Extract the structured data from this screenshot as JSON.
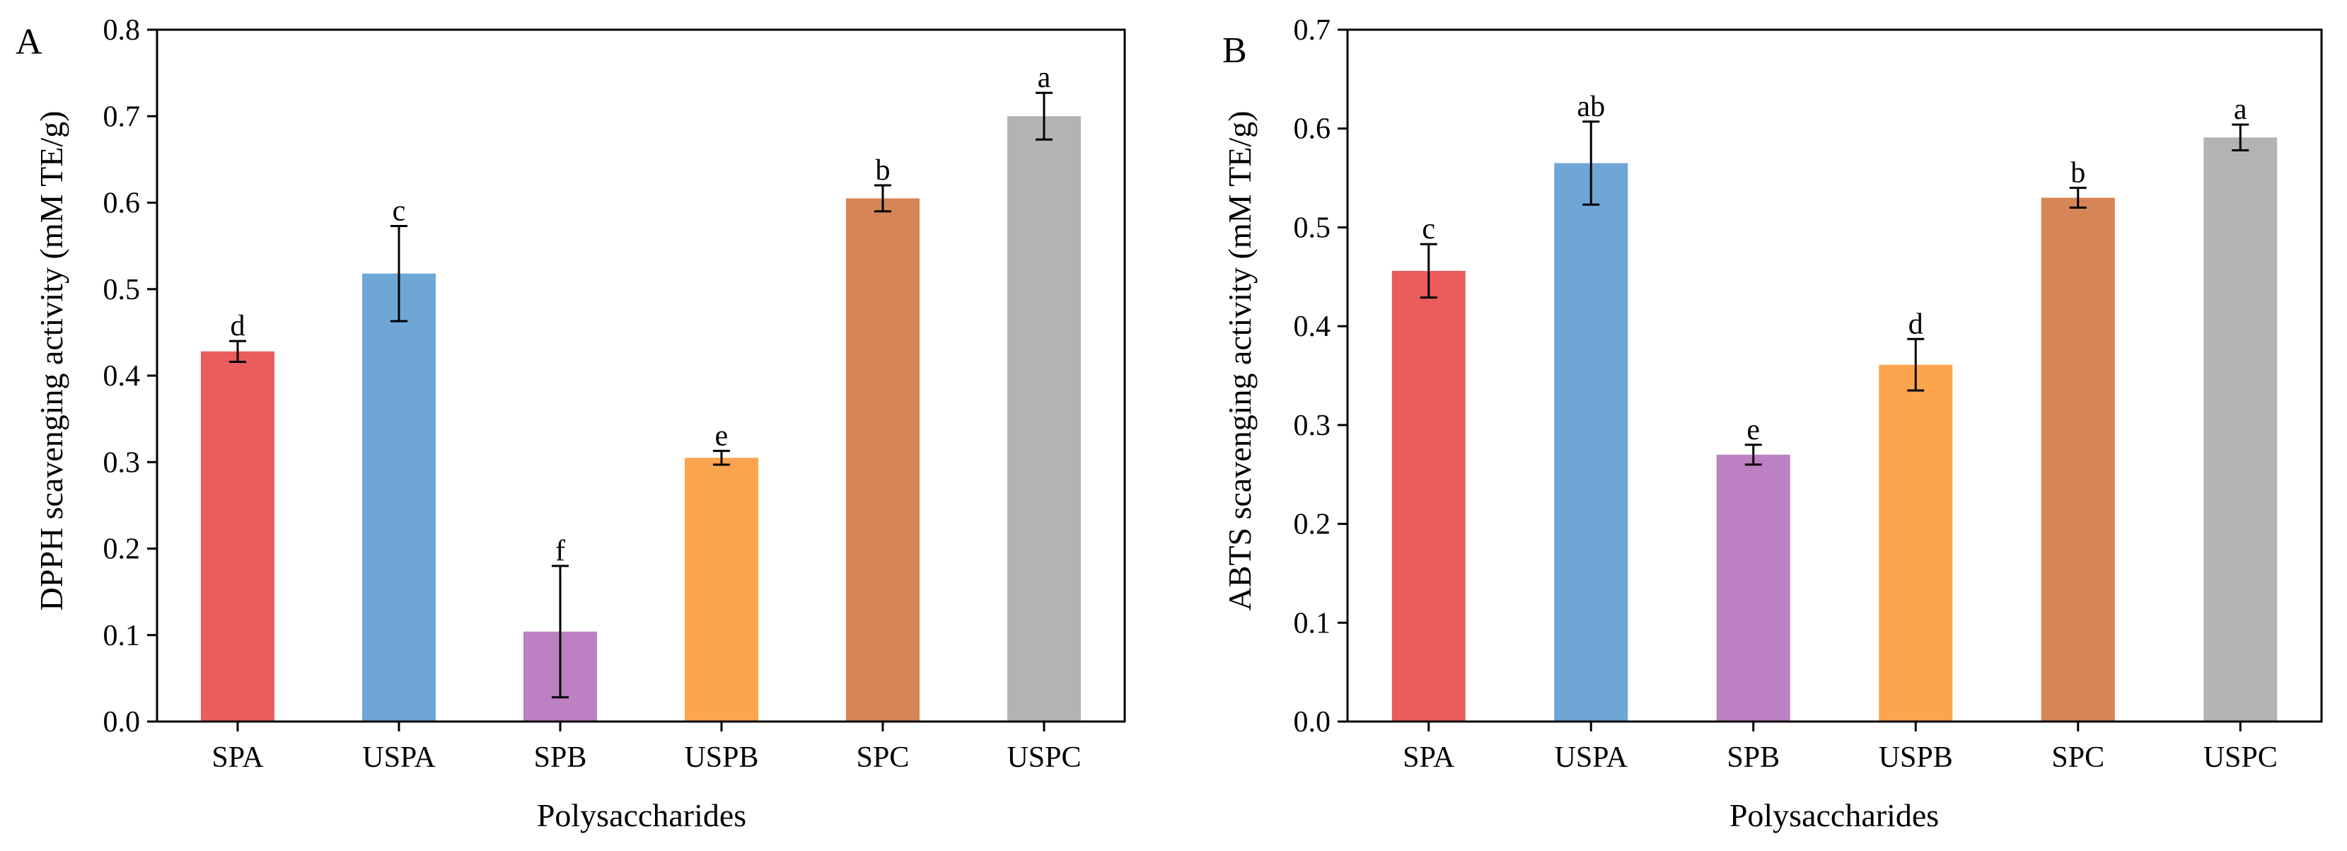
{
  "chart_data": [
    {
      "panel": "A",
      "type": "bar",
      "title": "",
      "xlabel": "Polysaccharides",
      "ylabel": "DPPH scavenging activity (mM TE/g)",
      "ylim": [
        0,
        0.8
      ],
      "yticks": [
        "0.0",
        "0.1",
        "0.2",
        "0.3",
        "0.4",
        "0.5",
        "0.6",
        "0.7",
        "0.8"
      ],
      "categories": [
        "SPA",
        "USPA",
        "SPB",
        "USPB",
        "SPC",
        "USPC"
      ],
      "values": [
        0.428,
        0.518,
        0.104,
        0.305,
        0.605,
        0.7
      ],
      "errors": [
        0.012,
        0.055,
        0.076,
        0.008,
        0.015,
        0.027
      ],
      "significance": [
        "d",
        "c",
        "f",
        "e",
        "b",
        "a"
      ],
      "colors": [
        "#EB5C5C",
        "#6EA6D5",
        "#BD80C2",
        "#FCA54F",
        "#D68656",
        "#B3B3B3"
      ]
    },
    {
      "panel": "B",
      "type": "bar",
      "title": "",
      "xlabel": "Polysaccharides",
      "ylabel": "ABTS scavenging activity (mM TE/g)",
      "ylim": [
        0,
        0.7
      ],
      "yticks": [
        "0.0",
        "0.1",
        "0.2",
        "0.3",
        "0.4",
        "0.5",
        "0.6",
        "0.7"
      ],
      "categories": [
        "SPA",
        "USPA",
        "SPB",
        "USPB",
        "SPC",
        "USPC"
      ],
      "values": [
        0.456,
        0.565,
        0.27,
        0.361,
        0.53,
        0.591
      ],
      "errors": [
        0.027,
        0.042,
        0.01,
        0.026,
        0.01,
        0.013
      ],
      "significance": [
        "c",
        "ab",
        "e",
        "d",
        "b",
        "a"
      ],
      "colors": [
        "#EB5C5C",
        "#6EA6D5",
        "#BD80C2",
        "#FCA54F",
        "#D68656",
        "#B3B3B3"
      ]
    }
  ]
}
